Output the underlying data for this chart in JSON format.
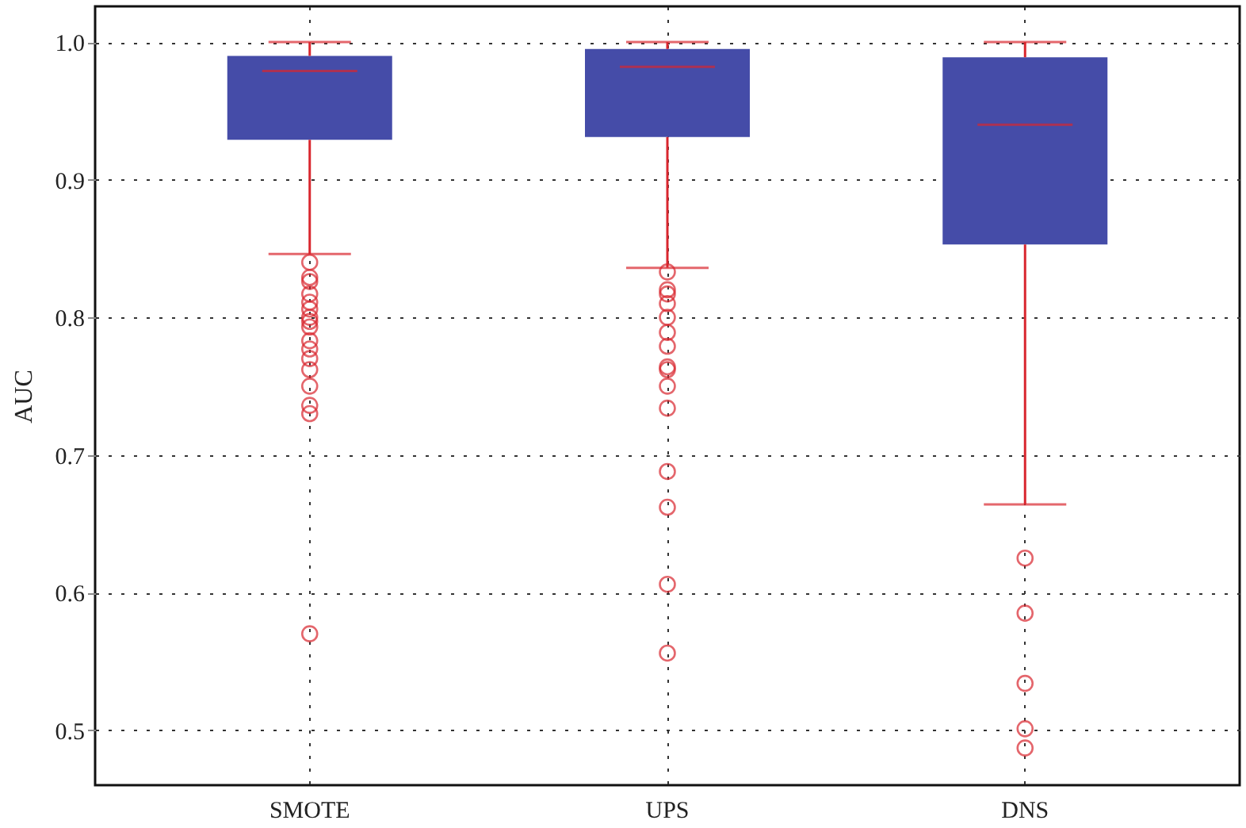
{
  "chart_data": {
    "type": "box",
    "ylabel": "AUC",
    "categories": [
      "SMOTE",
      "UPS",
      "DNS"
    ],
    "series": [
      {
        "color": "#454ca8",
        "boxes": [
          {
            "low": 0.846,
            "q1": 0.929,
            "median": 0.979,
            "q3": 0.99,
            "high": 1.0,
            "outliers": [
              0.84,
              0.829,
              0.826,
              0.817,
              0.811,
              0.806,
              0.8,
              0.797,
              0.793,
              0.783,
              0.777,
              0.77,
              0.762,
              0.75,
              0.736,
              0.73,
              0.57
            ]
          },
          {
            "low": 0.836,
            "q1": 0.931,
            "median": 0.982,
            "q3": 0.995,
            "high": 1.0,
            "outliers": [
              0.833,
              0.82,
              0.817,
              0.81,
              0.8,
              0.789,
              0.779,
              0.764,
              0.762,
              0.75,
              0.734,
              0.688,
              0.662,
              0.606,
              0.556
            ]
          },
          {
            "low": 0.664,
            "q1": 0.853,
            "median": 0.94,
            "q3": 0.989,
            "high": 1.0,
            "outliers": [
              0.625,
              0.585,
              0.534,
              0.501,
              0.487
            ]
          }
        ]
      }
    ],
    "ylim": [
      0.46,
      1.026
    ],
    "yticks": [
      0.5,
      0.6,
      0.7,
      0.8,
      0.9,
      {
        "value": 1,
        "label": "1.0"
      }
    ],
    "grid": true
  }
}
